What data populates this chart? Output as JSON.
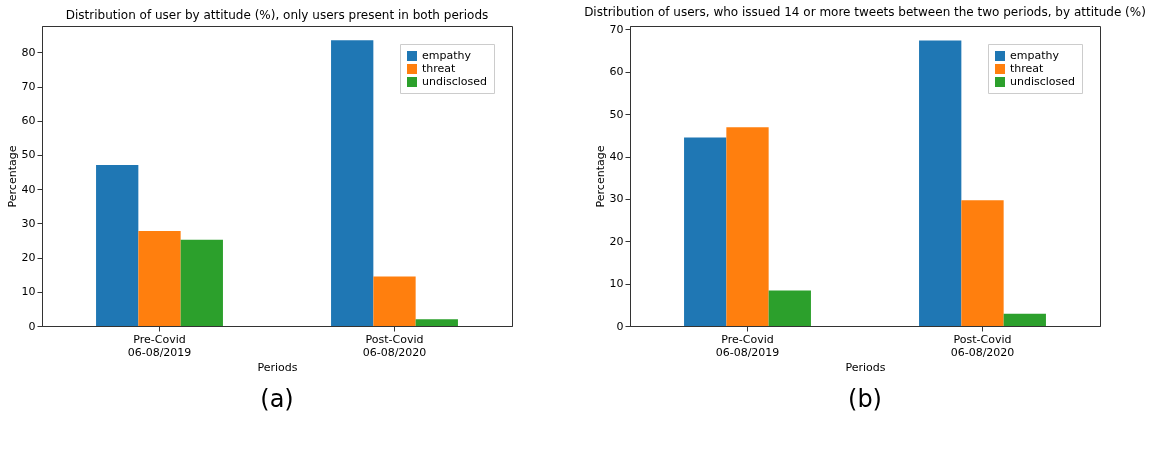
{
  "chart_data": [
    {
      "type": "bar",
      "title": "Distribution of user by attitude (%), only users present in both periods",
      "xlabel": "Periods",
      "ylabel": "Percentage",
      "categories": [
        "Pre-Covid\n06-08/2019",
        "Post-Covid\n06-08/2020"
      ],
      "series": [
        {
          "name": "empathy",
          "color": "#1f77b4",
          "values": [
            47.1,
            83.5
          ]
        },
        {
          "name": "threat",
          "color": "#ff7f0e",
          "values": [
            27.8,
            14.5
          ]
        },
        {
          "name": "undisclosed",
          "color": "#2ca02c",
          "values": [
            25.2,
            2.0
          ]
        }
      ],
      "ylim": [
        0,
        87.7
      ],
      "yticks": [
        0,
        10,
        20,
        30,
        40,
        50,
        60,
        70,
        80
      ],
      "legend": "top right",
      "grid": false,
      "annotations": [
        "(a)"
      ]
    },
    {
      "type": "bar",
      "title": "Distribution of users, who issued 14 or more tweets between the two periods, by attitude (%)",
      "xlabel": "Periods",
      "ylabel": "Percentage",
      "categories": [
        "Pre-Covid\n06-08/2019",
        "Post-Covid\n06-08/2020"
      ],
      "series": [
        {
          "name": "empathy",
          "color": "#1f77b4",
          "values": [
            44.5,
            67.4
          ]
        },
        {
          "name": "threat",
          "color": "#ff7f0e",
          "values": [
            46.9,
            29.7
          ]
        },
        {
          "name": "undisclosed",
          "color": "#2ca02c",
          "values": [
            8.4,
            2.9
          ]
        }
      ],
      "ylim": [
        0,
        70.8
      ],
      "yticks": [
        0,
        10,
        20,
        30,
        40,
        50,
        60,
        70
      ],
      "legend": "top right",
      "grid": false,
      "annotations": [
        "(b)"
      ]
    }
  ]
}
